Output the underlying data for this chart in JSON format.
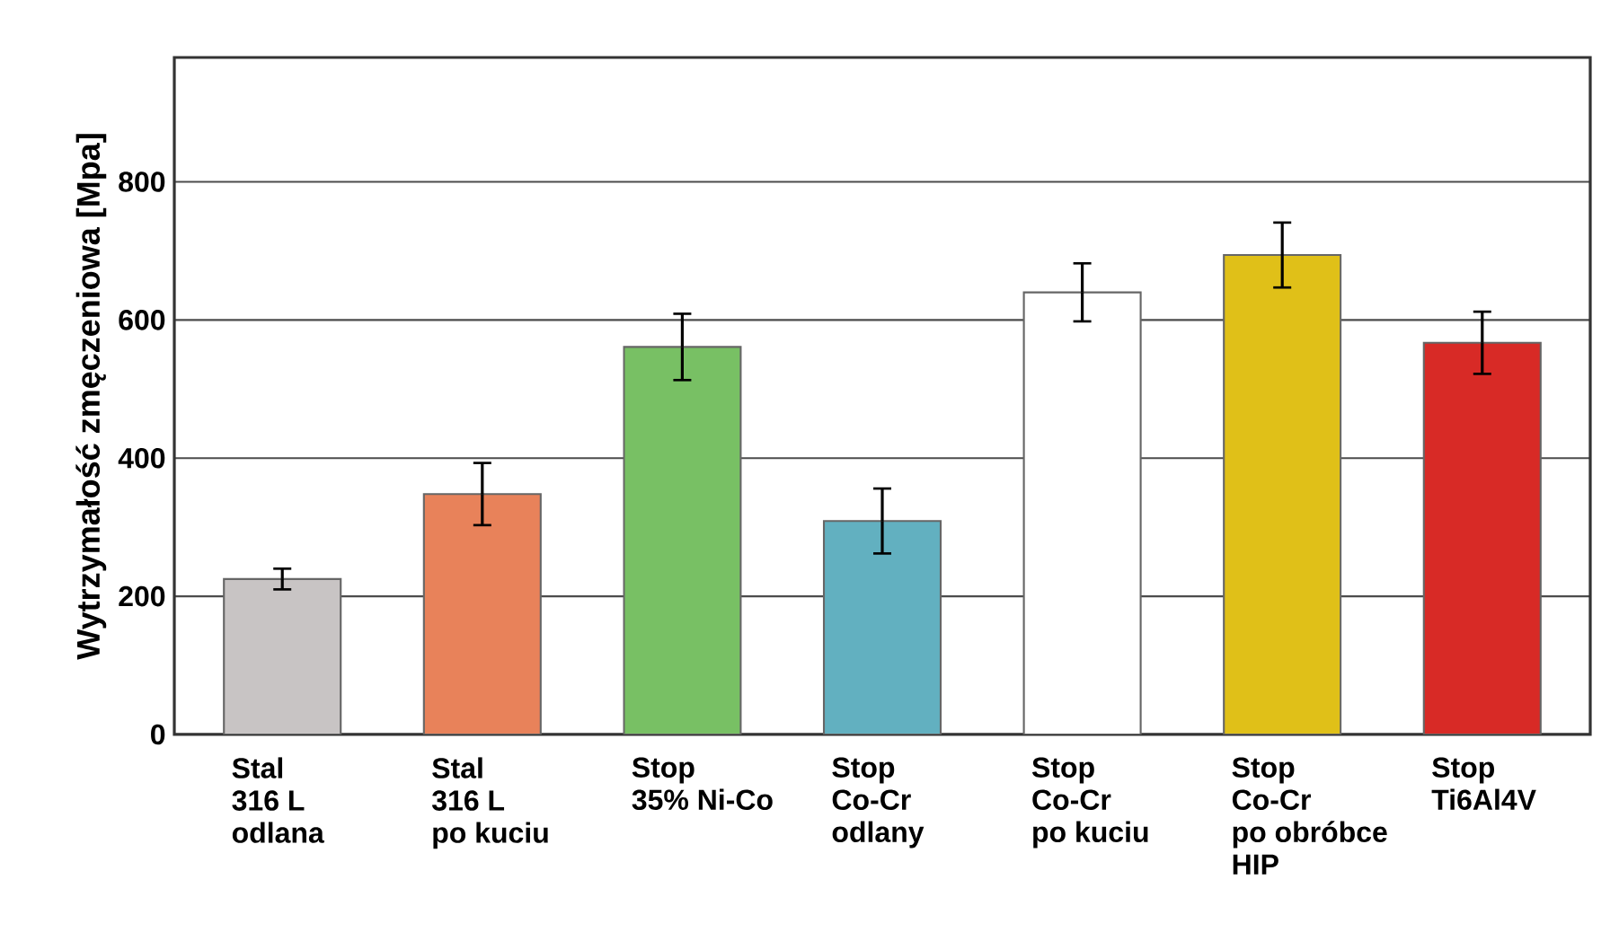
{
  "chart_data": {
    "type": "bar",
    "ylabel": "Wytrzymałość zmęczeniowa [Mpa]",
    "categories": [
      "Stal\n316 L\nodlana",
      "Stal\n316 L\npo kuciu",
      "Stop\n35% Ni-Co",
      "Stop\nCo-Cr\nodlany",
      "Stop\nCo-Cr\npo kuciu",
      "Stop\nCo-Cr\npo obróbce\nHIP",
      "Stop\nTi6Al4V"
    ],
    "values": [
      225,
      348,
      561,
      309,
      640,
      694,
      567
    ],
    "errors": [
      15,
      45,
      48,
      47,
      42,
      47,
      45
    ],
    "colors": [
      "#c8c4c4",
      "#e8825a",
      "#78c064",
      "#62b0c0",
      "#ffffff",
      "#e0c018",
      "#d82a26"
    ],
    "ylim": [
      0,
      980
    ],
    "yticks": [
      0,
      200,
      400,
      600,
      800
    ],
    "grid": "y"
  }
}
